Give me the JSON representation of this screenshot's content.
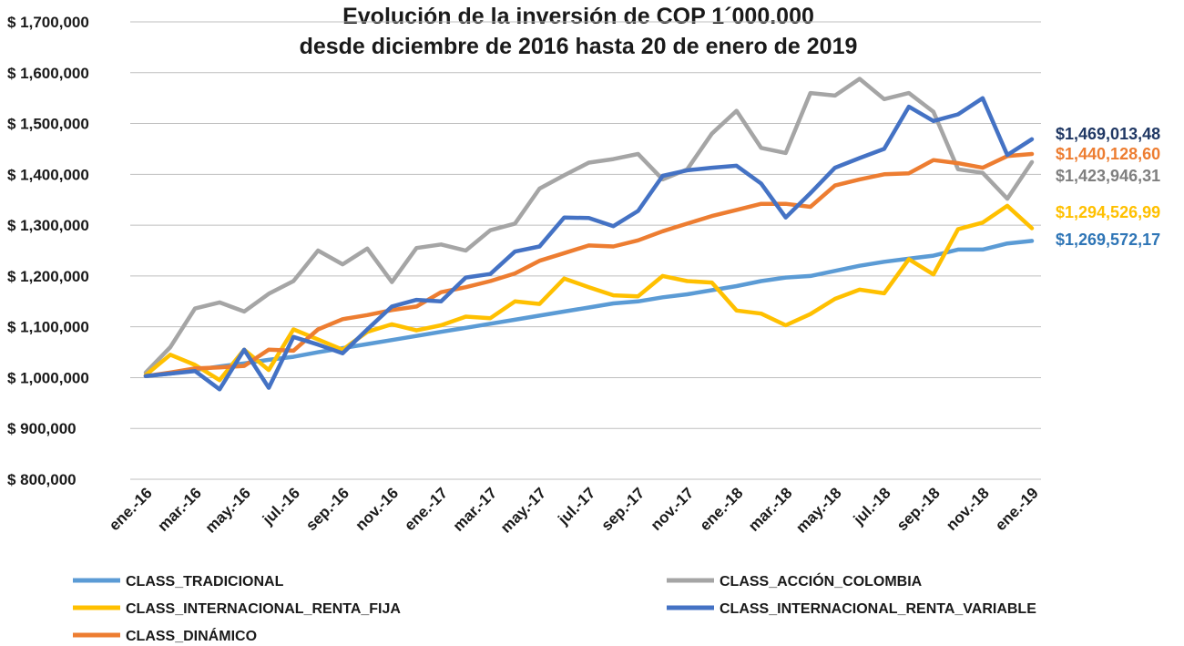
{
  "chart_data": {
    "type": "line",
    "title_lines": [
      "Evolución de la inversión de COP 1´000.000",
      "desde diciembre de 2016 hasta 20 de enero de 2019"
    ],
    "xlabel": "",
    "ylabel": "",
    "ylim": [
      800000,
      1700000
    ],
    "yticks": [
      {
        "value": 1700000,
        "label": "$ 1,700,000"
      },
      {
        "value": 1600000,
        "label": "$ 1,600,000"
      },
      {
        "value": 1500000,
        "label": "$ 1,500,000"
      },
      {
        "value": 1400000,
        "label": "$ 1,400,000"
      },
      {
        "value": 1300000,
        "label": "$ 1,300,000"
      },
      {
        "value": 1200000,
        "label": "$ 1,200,000"
      },
      {
        "value": 1100000,
        "label": "$ 1,100,000"
      },
      {
        "value": 1000000,
        "label": "$ 1,000,000"
      },
      {
        "value": 900000,
        "label": "$ 900,000"
      },
      {
        "value": 800000,
        "label": "$ 800,000"
      }
    ],
    "grid": true,
    "legend_position": "bottom",
    "categories": [
      "ene.-16",
      "feb.-16",
      "mar.-16",
      "abr.-16",
      "may.-16",
      "jun.-16",
      "jul.-16",
      "ago.-16",
      "sep.-16",
      "oct.-16",
      "nov.-16",
      "dic.-16",
      "ene.-17",
      "feb.-17",
      "mar.-17",
      "abr.-17",
      "may.-17",
      "jun.-17",
      "jul.-17",
      "ago.-17",
      "sep.-17",
      "oct.-17",
      "nov.-17",
      "dic.-17",
      "ene.-18",
      "feb.-18",
      "mar.-18",
      "abr.-18",
      "may.-18",
      "jun.-18",
      "jul.-18",
      "ago.-18",
      "sep.-18",
      "oct.-18",
      "nov.-18",
      "dic.-18",
      "ene.-19"
    ],
    "x_tick_labels": [
      {
        "index": 0,
        "label": "ene.-16"
      },
      {
        "index": 2,
        "label": "mar.-16"
      },
      {
        "index": 4,
        "label": "may.-16"
      },
      {
        "index": 6,
        "label": "jul.-16"
      },
      {
        "index": 8,
        "label": "sep.-16"
      },
      {
        "index": 10,
        "label": "nov.-16"
      },
      {
        "index": 12,
        "label": "ene.-17"
      },
      {
        "index": 14,
        "label": "mar.-17"
      },
      {
        "index": 16,
        "label": "may.-17"
      },
      {
        "index": 18,
        "label": "jul.-17"
      },
      {
        "index": 20,
        "label": "sep.-17"
      },
      {
        "index": 22,
        "label": "nov.-17"
      },
      {
        "index": 24,
        "label": "ene.-18"
      },
      {
        "index": 26,
        "label": "mar.-18"
      },
      {
        "index": 28,
        "label": "may.-18"
      },
      {
        "index": 30,
        "label": "jul.-18"
      },
      {
        "index": 32,
        "label": "sep.-18"
      },
      {
        "index": 34,
        "label": "nov.-18"
      },
      {
        "index": 36,
        "label": "ene.-19"
      }
    ],
    "series": [
      {
        "name": "CLASS_TRADICIONAL",
        "color": "#5b9bd5",
        "values": [
          1003000,
          1008000,
          1015000,
          1022000,
          1028000,
          1035000,
          1041000,
          1050000,
          1058000,
          1066000,
          1074000,
          1082000,
          1090000,
          1098000,
          1106000,
          1114000,
          1122000,
          1130000,
          1138000,
          1146000,
          1150000,
          1158000,
          1164000,
          1172000,
          1180000,
          1190000,
          1197000,
          1200000,
          1210000,
          1220000,
          1228000,
          1234000,
          1240000,
          1252000,
          1252000,
          1264000,
          1269000
        ],
        "end_label": "$1,269,572,17",
        "end_label_color": "#2e75b6"
      },
      {
        "name": "CLASS_ACCIÓN_COLOMBIA",
        "color": "#a5a5a5",
        "values": [
          1010000,
          1060000,
          1136000,
          1148000,
          1130000,
          1165000,
          1190000,
          1250000,
          1223000,
          1254000,
          1188000,
          1255000,
          1262000,
          1250000,
          1290000,
          1303000,
          1372000,
          1398000,
          1423000,
          1430000,
          1440000,
          1390000,
          1410000,
          1480000,
          1525000,
          1452000,
          1442000,
          1560000,
          1555000,
          1588000,
          1548000,
          1560000,
          1523000,
          1410000,
          1403000,
          1352000,
          1424000
        ],
        "end_label": "$1,423,946,31",
        "end_label_color": "#7f7f7f"
      },
      {
        "name": "CLASS_INTERNACIONAL_RENTA_FIJA",
        "color": "#ffc000",
        "values": [
          1005000,
          1045000,
          1025000,
          995000,
          1055000,
          1015000,
          1095000,
          1075000,
          1055000,
          1090000,
          1105000,
          1093000,
          1103000,
          1120000,
          1117000,
          1150000,
          1145000,
          1195000,
          1178000,
          1162000,
          1160000,
          1200000,
          1190000,
          1187000,
          1132000,
          1126000,
          1103000,
          1125000,
          1155000,
          1173000,
          1166000,
          1233000,
          1203000,
          1292000,
          1305000,
          1338000,
          1294000
        ],
        "end_label": "$1,294,526,99",
        "end_label_color": "#ffc000"
      },
      {
        "name": "CLASS_INTERNACIONAL_RENTA_VARIABLE",
        "color": "#4472c4",
        "values": [
          1003000,
          1008000,
          1013000,
          977000,
          1055000,
          980000,
          1080000,
          1065000,
          1048000,
          1095000,
          1140000,
          1153000,
          1150000,
          1197000,
          1204000,
          1248000,
          1258000,
          1315000,
          1314000,
          1298000,
          1328000,
          1397000,
          1408000,
          1413000,
          1417000,
          1382000,
          1315000,
          1363000,
          1413000,
          1432000,
          1450000,
          1533000,
          1505000,
          1518000,
          1550000,
          1438000,
          1469000
        ],
        "end_label": "$1,469,013,48",
        "end_label_color": "#203864"
      },
      {
        "name": "CLASS_DINÁMICO",
        "color": "#ed7d31",
        "values": [
          1003000,
          1010000,
          1018000,
          1020000,
          1023000,
          1055000,
          1053000,
          1095000,
          1115000,
          1123000,
          1133000,
          1140000,
          1168000,
          1178000,
          1190000,
          1205000,
          1230000,
          1245000,
          1260000,
          1258000,
          1270000,
          1288000,
          1303000,
          1318000,
          1330000,
          1342000,
          1342000,
          1336000,
          1378000,
          1390000,
          1400000,
          1402000,
          1428000,
          1422000,
          1413000,
          1436000,
          1440000
        ],
        "end_label": "$1,440,128,60",
        "end_label_color": "#ed7d31"
      }
    ]
  }
}
